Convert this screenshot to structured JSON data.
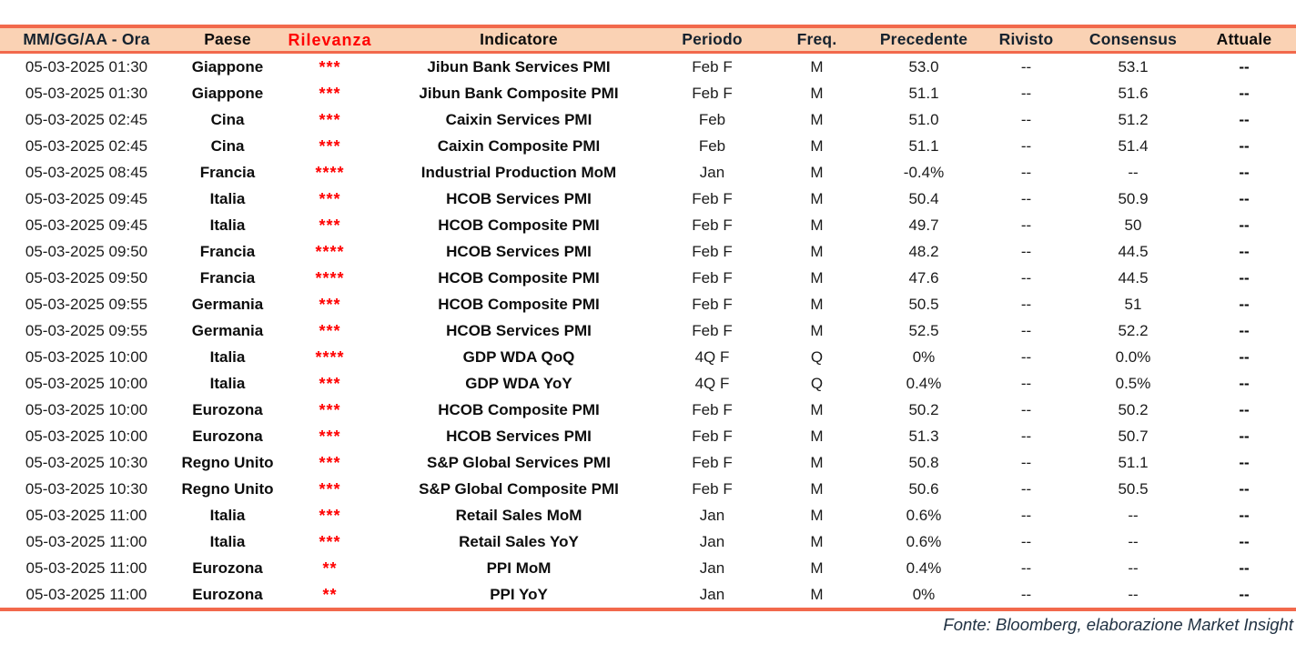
{
  "colors": {
    "border_coral": "#F2694C",
    "header_bg": "#FAD2B4",
    "header_text": "#15222e",
    "body_text": "#1b1b1b",
    "relevance_red": "#FF0000",
    "footer_text": "#213243"
  },
  "table": {
    "columns": [
      {
        "key": "datetime",
        "label": "MM/GG/AA - Ora"
      },
      {
        "key": "country",
        "label": "Paese"
      },
      {
        "key": "relevance",
        "label": "Rilevanza"
      },
      {
        "key": "indicator",
        "label": "Indicatore"
      },
      {
        "key": "period",
        "label": "Periodo"
      },
      {
        "key": "freq",
        "label": "Freq."
      },
      {
        "key": "previous",
        "label": "Precedente"
      },
      {
        "key": "revised",
        "label": "Rivisto"
      },
      {
        "key": "consensus",
        "label": "Consensus"
      },
      {
        "key": "actual",
        "label": "Attuale"
      }
    ],
    "rows": [
      {
        "datetime": "05-03-2025 01:30",
        "country": "Giappone",
        "relevance": "***",
        "indicator": "Jibun Bank Services PMI",
        "period": "Feb F",
        "freq": "M",
        "previous": "53.0",
        "revised": "--",
        "consensus": "53.1",
        "actual": "--"
      },
      {
        "datetime": "05-03-2025 01:30",
        "country": "Giappone",
        "relevance": "***",
        "indicator": "Jibun Bank Composite PMI",
        "period": "Feb F",
        "freq": "M",
        "previous": "51.1",
        "revised": "--",
        "consensus": "51.6",
        "actual": "--"
      },
      {
        "datetime": "05-03-2025 02:45",
        "country": "Cina",
        "relevance": "***",
        "indicator": "Caixin Services PMI",
        "period": "Feb",
        "freq": "M",
        "previous": "51.0",
        "revised": "--",
        "consensus": "51.2",
        "actual": "--"
      },
      {
        "datetime": "05-03-2025 02:45",
        "country": "Cina",
        "relevance": "***",
        "indicator": "Caixin Composite PMI",
        "period": "Feb",
        "freq": "M",
        "previous": "51.1",
        "revised": "--",
        "consensus": "51.4",
        "actual": "--"
      },
      {
        "datetime": "05-03-2025 08:45",
        "country": "Francia",
        "relevance": "****",
        "indicator": "Industrial Production MoM",
        "period": "Jan",
        "freq": "M",
        "previous": "-0.4%",
        "revised": "--",
        "consensus": "--",
        "actual": "--"
      },
      {
        "datetime": "05-03-2025 09:45",
        "country": "Italia",
        "relevance": "***",
        "indicator": "HCOB Services PMI",
        "period": "Feb F",
        "freq": "M",
        "previous": "50.4",
        "revised": "--",
        "consensus": "50.9",
        "actual": "--"
      },
      {
        "datetime": "05-03-2025 09:45",
        "country": "Italia",
        "relevance": "***",
        "indicator": "HCOB Composite PMI",
        "period": "Feb F",
        "freq": "M",
        "previous": "49.7",
        "revised": "--",
        "consensus": "50",
        "actual": "--"
      },
      {
        "datetime": "05-03-2025 09:50",
        "country": "Francia",
        "relevance": "****",
        "indicator": "HCOB Services PMI",
        "period": "Feb F",
        "freq": "M",
        "previous": "48.2",
        "revised": "--",
        "consensus": "44.5",
        "actual": "--"
      },
      {
        "datetime": "05-03-2025 09:50",
        "country": "Francia",
        "relevance": "****",
        "indicator": "HCOB Composite PMI",
        "period": "Feb F",
        "freq": "M",
        "previous": "47.6",
        "revised": "--",
        "consensus": "44.5",
        "actual": "--"
      },
      {
        "datetime": "05-03-2025 09:55",
        "country": "Germania",
        "relevance": "***",
        "indicator": "HCOB Composite PMI",
        "period": "Feb F",
        "freq": "M",
        "previous": "50.5",
        "revised": "--",
        "consensus": "51",
        "actual": "--"
      },
      {
        "datetime": "05-03-2025 09:55",
        "country": "Germania",
        "relevance": "***",
        "indicator": "HCOB Services PMI",
        "period": "Feb F",
        "freq": "M",
        "previous": "52.5",
        "revised": "--",
        "consensus": "52.2",
        "actual": "--"
      },
      {
        "datetime": "05-03-2025 10:00",
        "country": "Italia",
        "relevance": "****",
        "indicator": "GDP WDA QoQ",
        "period": "4Q F",
        "freq": "Q",
        "previous": "0%",
        "revised": "--",
        "consensus": "0.0%",
        "actual": "--"
      },
      {
        "datetime": "05-03-2025 10:00",
        "country": "Italia",
        "relevance": "***",
        "indicator": "GDP WDA YoY",
        "period": "4Q F",
        "freq": "Q",
        "previous": "0.4%",
        "revised": "--",
        "consensus": "0.5%",
        "actual": "--"
      },
      {
        "datetime": "05-03-2025 10:00",
        "country": "Eurozona",
        "relevance": "***",
        "indicator": "HCOB Composite PMI",
        "period": "Feb F",
        "freq": "M",
        "previous": "50.2",
        "revised": "--",
        "consensus": "50.2",
        "actual": "--"
      },
      {
        "datetime": "05-03-2025 10:00",
        "country": "Eurozona",
        "relevance": "***",
        "indicator": "HCOB Services PMI",
        "period": "Feb F",
        "freq": "M",
        "previous": "51.3",
        "revised": "--",
        "consensus": "50.7",
        "actual": "--"
      },
      {
        "datetime": "05-03-2025 10:30",
        "country": "Regno Unito",
        "relevance": "***",
        "indicator": "S&P Global Services PMI",
        "period": "Feb F",
        "freq": "M",
        "previous": "50.8",
        "revised": "--",
        "consensus": "51.1",
        "actual": "--"
      },
      {
        "datetime": "05-03-2025 10:30",
        "country": "Regno Unito",
        "relevance": "***",
        "indicator": "S&P Global Composite PMI",
        "period": "Feb F",
        "freq": "M",
        "previous": "50.6",
        "revised": "--",
        "consensus": "50.5",
        "actual": "--"
      },
      {
        "datetime": "05-03-2025 11:00",
        "country": "Italia",
        "relevance": "***",
        "indicator": "Retail Sales MoM",
        "period": "Jan",
        "freq": "M",
        "previous": "0.6%",
        "revised": "--",
        "consensus": "--",
        "actual": "--"
      },
      {
        "datetime": "05-03-2025 11:00",
        "country": "Italia",
        "relevance": "***",
        "indicator": "Retail Sales YoY",
        "period": "Jan",
        "freq": "M",
        "previous": "0.6%",
        "revised": "--",
        "consensus": "--",
        "actual": "--"
      },
      {
        "datetime": "05-03-2025 11:00",
        "country": "Eurozona",
        "relevance": "**",
        "indicator": "PPI MoM",
        "period": "Jan",
        "freq": "M",
        "previous": "0.4%",
        "revised": "--",
        "consensus": "--",
        "actual": "--"
      },
      {
        "datetime": "05-03-2025 11:00",
        "country": "Eurozona",
        "relevance": "**",
        "indicator": "PPI YoY",
        "period": "Jan",
        "freq": "M",
        "previous": "0%",
        "revised": "--",
        "consensus": "--",
        "actual": "--"
      }
    ]
  },
  "footer": {
    "source": "Fonte: Bloomberg, elaborazione Market Insight"
  }
}
